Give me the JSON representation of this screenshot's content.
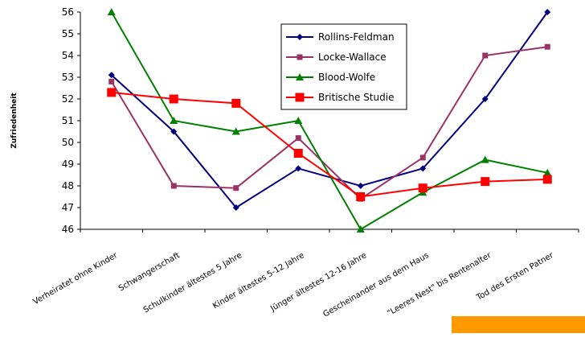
{
  "chart_data": {
    "type": "line",
    "categories": [
      "Verheiratet ohne Kinder",
      "Schwangerschaft",
      "Schulkinder ältestes 5 Jahre",
      "Kinder ältestes 5-12 Jahre",
      "Jünger ältestes 12-16 Jahre",
      "Gescheinander aus dem Haus",
      "\"Leeres Nest\" bis Rentenalter",
      "Tod des Ersten Patner"
    ],
    "series": [
      {
        "name": "Rollins-Feldman",
        "color": "#000080",
        "marker": "diamond",
        "values": [
          53.1,
          50.5,
          47.0,
          48.8,
          48.0,
          48.8,
          52.0,
          56.0
        ]
      },
      {
        "name": "Locke-Wallace",
        "color": "#993366",
        "marker": "square",
        "values": [
          52.8,
          48.0,
          47.9,
          50.2,
          47.4,
          49.3,
          54.0,
          54.4
        ]
      },
      {
        "name": "Blood-Wolfe",
        "color": "#008000",
        "marker": "triangle",
        "values": [
          56.0,
          51.0,
          50.5,
          51.0,
          46.0,
          47.7,
          49.2,
          48.6
        ]
      },
      {
        "name": "Britische Studie",
        "color": "#ff0000",
        "marker": "bigsquare",
        "values": [
          52.3,
          52.0,
          51.8,
          49.5,
          47.5,
          47.9,
          48.2,
          48.3
        ]
      }
    ],
    "ylabel": "Zufriedenheit",
    "ylim": [
      46,
      56
    ],
    "yticks": [
      46,
      47,
      48,
      49,
      50,
      51,
      52,
      53,
      54,
      55,
      56
    ],
    "grid": false,
    "legend": "top-center",
    "highlight_color": "#ff9900"
  }
}
